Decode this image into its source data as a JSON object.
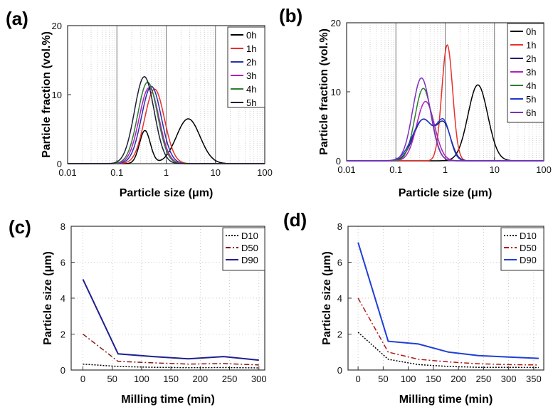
{
  "chart_data": [
    {
      "panel": "(a)",
      "type": "line",
      "xscale": "log",
      "xlabel": "Particle size (μm)",
      "ylabel": "Particle fraction (vol.%)",
      "xlim": [
        0.01,
        100
      ],
      "ylim": [
        0,
        20
      ],
      "xticks": [
        "0.01",
        "0.1",
        "1",
        "10",
        "100"
      ],
      "yticks": [
        "0",
        "10",
        "20"
      ],
      "grid": true,
      "legend_position": "top-right",
      "series": [
        {
          "name": "0h",
          "color": "#000000",
          "peaks": [
            {
              "x": 0.37,
              "y": 4.8,
              "w": 0.11
            },
            {
              "x": 2.8,
              "y": 6.5,
              "w": 0.24
            }
          ]
        },
        {
          "name": "1h",
          "color": "#e8302c",
          "peaks": [
            {
              "x": 0.58,
              "y": 10.8,
              "w": 0.2
            }
          ]
        },
        {
          "name": "2h",
          "color": "#2a2fa8",
          "peaks": [
            {
              "x": 0.5,
              "y": 11.2,
              "w": 0.2
            }
          ]
        },
        {
          "name": "3h",
          "color": "#b21ec0",
          "peaks": [
            {
              "x": 0.45,
              "y": 11.0,
              "w": 0.2
            }
          ]
        },
        {
          "name": "4h",
          "color": "#2e7d2e",
          "peaks": [
            {
              "x": 0.42,
              "y": 11.8,
              "w": 0.2
            }
          ]
        },
        {
          "name": "5h",
          "color": "#1f1f3a",
          "peaks": [
            {
              "x": 0.36,
              "y": 12.6,
              "w": 0.2
            }
          ]
        }
      ]
    },
    {
      "panel": "(b)",
      "type": "line",
      "xscale": "log",
      "xlabel": "Particle size (μm)",
      "ylabel": "Particle fraction (vol.%)",
      "xlim": [
        0.01,
        100
      ],
      "ylim": [
        0,
        20
      ],
      "xticks": [
        "0.01",
        "0.1",
        "1",
        "10",
        "100"
      ],
      "yticks": [
        "0",
        "10",
        "20"
      ],
      "grid": true,
      "legend_position": "top-right",
      "series": [
        {
          "name": "0h",
          "color": "#000000",
          "peaks": [
            {
              "x": 4.6,
              "y": 11.0,
              "w": 0.2
            }
          ]
        },
        {
          "name": "1h",
          "color": "#e8302c",
          "peaks": [
            {
              "x": 1.1,
              "y": 16.8,
              "w": 0.11
            }
          ]
        },
        {
          "name": "2h",
          "color": "#1f1f6e",
          "peaks": [
            {
              "x": 0.36,
              "y": 6.0,
              "w": 0.2
            },
            {
              "x": 0.95,
              "y": 5.0,
              "w": 0.14
            }
          ]
        },
        {
          "name": "3h",
          "color": "#b21ec0",
          "peaks": [
            {
              "x": 0.4,
              "y": 8.6,
              "w": 0.18
            }
          ]
        },
        {
          "name": "4h",
          "color": "#2e7d2e",
          "peaks": [
            {
              "x": 0.36,
              "y": 10.5,
              "w": 0.17
            }
          ]
        },
        {
          "name": "5h",
          "color": "#2233cc",
          "peaks": [
            {
              "x": 0.36,
              "y": 6.0,
              "w": 0.22
            },
            {
              "x": 0.95,
              "y": 5.0,
              "w": 0.13
            }
          ]
        },
        {
          "name": "6h",
          "color": "#7b2fbf",
          "peaks": [
            {
              "x": 0.33,
              "y": 12.0,
              "w": 0.18
            }
          ]
        }
      ]
    },
    {
      "panel": "(c)",
      "type": "line",
      "xlabel": "Milling time (min)",
      "ylabel": "Particle size (μm)",
      "xlim": [
        -20,
        310
      ],
      "ylim": [
        0,
        8
      ],
      "xticks": [
        0,
        50,
        100,
        150,
        200,
        250,
        300
      ],
      "yticks": [
        0,
        2,
        4,
        6,
        8
      ],
      "grid": true,
      "legend_position": "top-right",
      "x": [
        0,
        60,
        120,
        180,
        240,
        300
      ],
      "series": [
        {
          "name": "D10",
          "color": "#000000",
          "dash": "2,2",
          "values": [
            0.33,
            0.2,
            0.15,
            0.13,
            0.14,
            0.12
          ]
        },
        {
          "name": "D50",
          "color": "#8b1a1a",
          "dash": "7,3,2,3",
          "values": [
            2.0,
            0.48,
            0.4,
            0.33,
            0.36,
            0.28
          ]
        },
        {
          "name": "D90",
          "color": "#1f1f8f",
          "dash": "",
          "values": [
            5.05,
            0.9,
            0.75,
            0.62,
            0.75,
            0.55
          ]
        }
      ]
    },
    {
      "panel": "(d)",
      "type": "line",
      "xlabel": "Milling time (min)",
      "ylabel": "Particle size (μm)",
      "xlim": [
        -20,
        370
      ],
      "ylim": [
        0,
        8
      ],
      "xticks": [
        0,
        50,
        100,
        150,
        200,
        250,
        300,
        350
      ],
      "yticks": [
        0,
        2,
        4,
        6,
        8
      ],
      "grid": true,
      "legend_position": "top-right",
      "x": [
        0,
        60,
        120,
        180,
        240,
        300,
        360
      ],
      "series": [
        {
          "name": "D10",
          "color": "#000000",
          "dash": "2,2",
          "values": [
            2.1,
            0.6,
            0.3,
            0.2,
            0.15,
            0.15,
            0.14
          ]
        },
        {
          "name": "D50",
          "color": "#b01818",
          "dash": "7,3,2,3",
          "values": [
            4.0,
            1.0,
            0.6,
            0.45,
            0.35,
            0.3,
            0.28
          ]
        },
        {
          "name": "D90",
          "color": "#1f3fd6",
          "dash": "",
          "values": [
            7.1,
            1.6,
            1.45,
            1.0,
            0.8,
            0.72,
            0.65
          ]
        }
      ]
    }
  ]
}
